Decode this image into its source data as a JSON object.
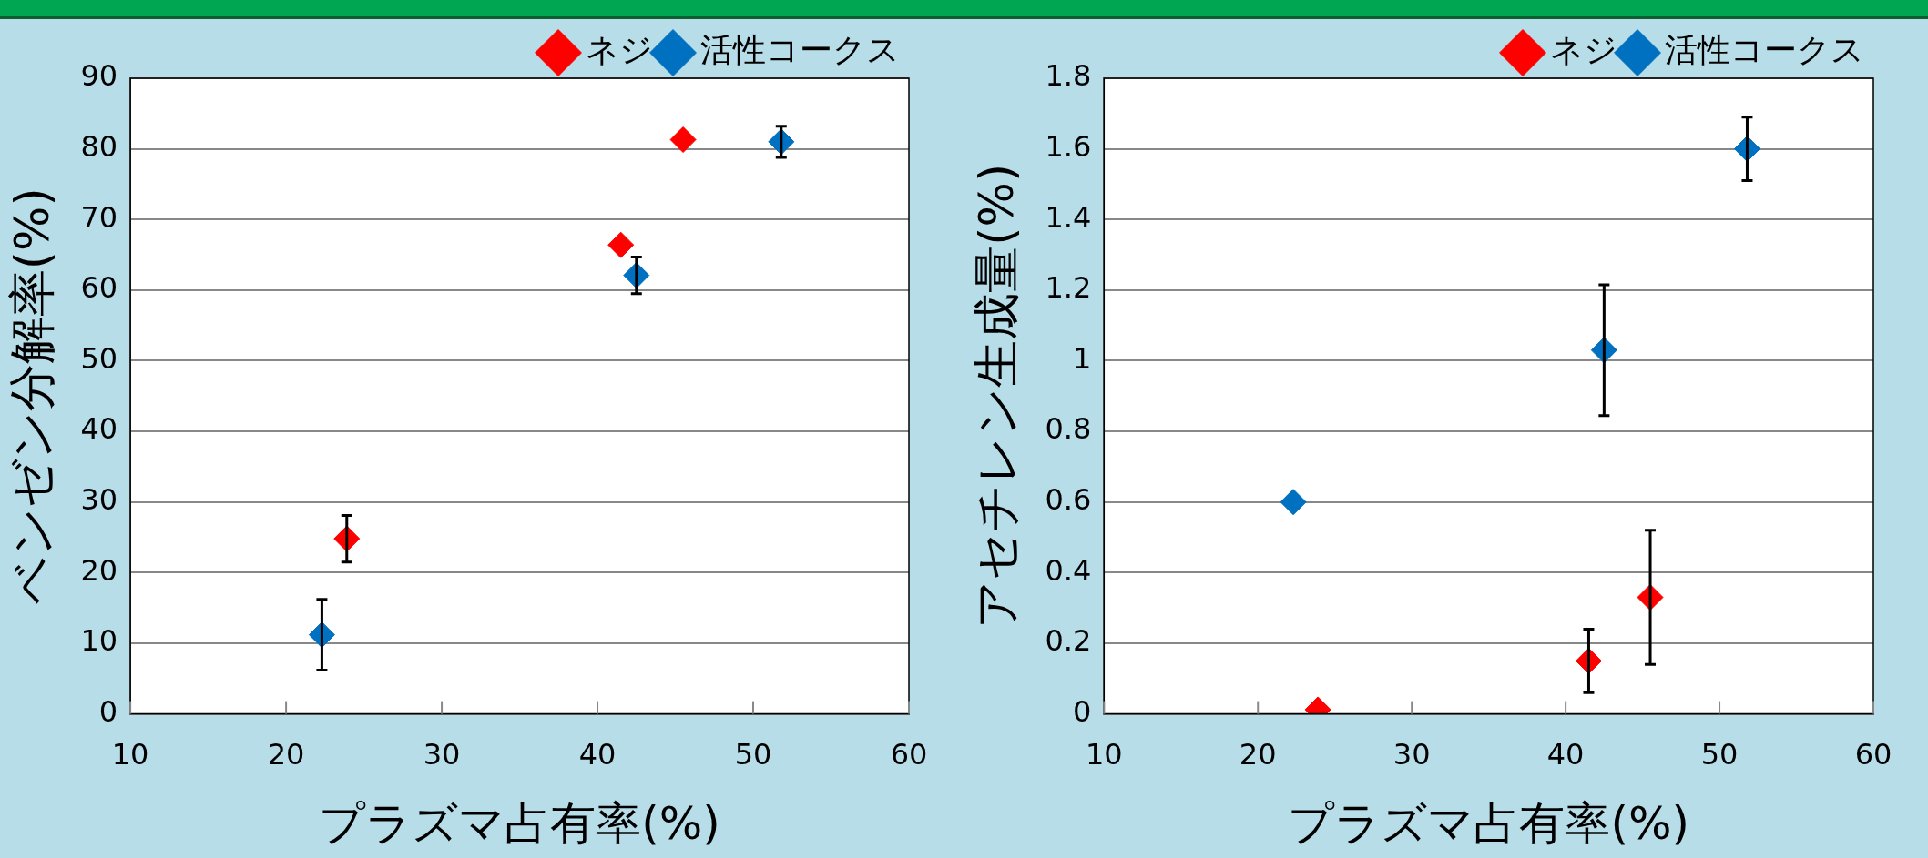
{
  "chart_data": [
    {
      "type": "scatter",
      "xlabel": "プラズマ占有率(%)",
      "ylabel": "ベンゼン分解率(%)",
      "xlim": [
        10,
        60
      ],
      "xticks": [
        10,
        20,
        30,
        40,
        50,
        60
      ],
      "ylim": [
        0,
        90
      ],
      "yticks": [
        0,
        10,
        20,
        30,
        40,
        50,
        60,
        70,
        80,
        90
      ],
      "grid": "y",
      "legend": "top right",
      "marker": "diamond",
      "series": [
        {
          "name": "ネジ",
          "color": "#ff0000",
          "x": [
            23.9,
            41.5,
            45.5
          ],
          "values": [
            24.8,
            66.4,
            81.3
          ],
          "errors": [
            3.3,
            null,
            null
          ]
        },
        {
          "name": "活性コークス",
          "color": "#0070c0",
          "x": [
            22.3,
            42.5,
            51.8
          ],
          "values": [
            11.2,
            62.1,
            81.0
          ],
          "errors": [
            5,
            2.6,
            2.2
          ]
        }
      ]
    },
    {
      "type": "scatter",
      "xlabel": "プラズマ占有率(%)",
      "ylabel": "アセチレン生成量(%)",
      "xlim": [
        10,
        60
      ],
      "xticks": [
        10,
        20,
        30,
        40,
        50,
        60
      ],
      "ylim": [
        0,
        1.8
      ],
      "yticks": [
        0,
        0.2,
        0.4,
        0.6,
        0.8,
        1,
        1.2,
        1.4,
        1.6,
        1.8
      ],
      "grid": "y",
      "legend": "top right",
      "marker": "diamond",
      "series": [
        {
          "name": "ネジ",
          "color": "#ff0000",
          "x": [
            23.9,
            41.5,
            45.5
          ],
          "values": [
            0.012,
            0.15,
            0.33
          ],
          "errors": [
            null,
            0.09,
            0.19
          ]
        },
        {
          "name": "活性コークス",
          "color": "#0070c0",
          "x": [
            22.3,
            42.5,
            51.8
          ],
          "values": [
            0.6,
            1.03,
            1.6
          ],
          "errors": [
            null,
            0.185,
            0.09
          ]
        }
      ]
    }
  ]
}
